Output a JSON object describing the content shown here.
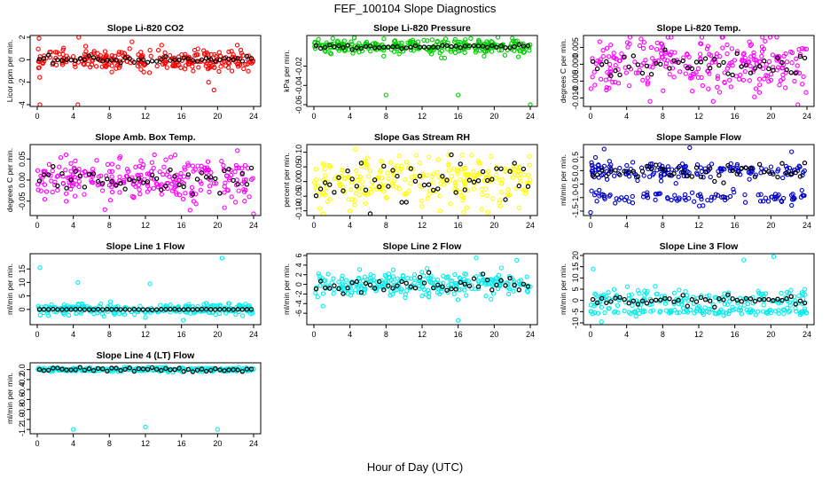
{
  "title": "FEF_100104  Slope Diagnostics",
  "xlabel": "Hour of Day (UTC)",
  "chart_data": [
    {
      "type": "scatter",
      "title": "Slope Li-820 CO2",
      "ylabel": "Licor ppm per min.",
      "xlim": [
        0,
        24
      ],
      "ylim": [
        -4,
        2
      ],
      "yticks": [
        -4,
        -2,
        0,
        2
      ],
      "ytick_labels": [
        "-4",
        "-2",
        "0",
        "2"
      ],
      "color": "#ff0000",
      "center": 0,
      "spread": 0.45,
      "ref_center": 0,
      "ref_spread": 0.15,
      "outliers": [
        [
          0.2,
          1.9
        ],
        [
          4.6,
          2.0
        ],
        [
          0.3,
          -4.0
        ],
        [
          4.5,
          -4.1
        ],
        [
          17.2,
          -0.6
        ],
        [
          17.3,
          -1.0
        ],
        [
          19.0,
          -2.0
        ],
        [
          19.6,
          -2.7
        ],
        [
          10.5,
          1.6
        ],
        [
          13.8,
          1.3
        ]
      ]
    },
    {
      "type": "scatter",
      "title": "Slope Li-820 Pressure",
      "ylabel": "kPa per min.",
      "xlim": [
        0,
        24
      ],
      "ylim": [
        -0.06,
        0.01
      ],
      "yticks": [
        -0.06,
        -0.04,
        -0.02
      ],
      "ytick_labels": [
        "-0.06",
        "-0.04",
        "-0.02"
      ],
      "color": "#00cc00",
      "center": 0.0,
      "spread": 0.004,
      "ref_center": 0.0,
      "ref_spread": 0.001,
      "outliers": [
        [
          8.0,
          -0.05
        ],
        [
          16.0,
          -0.05
        ],
        [
          24.0,
          -0.06
        ],
        [
          0.5,
          0.008
        ],
        [
          22.0,
          0.009
        ]
      ]
    },
    {
      "type": "scatter",
      "title": "Slope Li-820 Temp.",
      "ylabel": "degrees C per min.",
      "xlim": [
        0,
        24
      ],
      "ylim": [
        -0.012,
        0.008
      ],
      "yticks": [
        -0.01,
        -0.005,
        0,
        0.005
      ],
      "ytick_labels": [
        "-0.010",
        "-0.005",
        "0.000",
        "0.005"
      ],
      "color": "#ff00ff",
      "center": 0.0,
      "spread": 0.004,
      "ref_center": 0.0,
      "ref_spread": 0.002,
      "outliers": [
        [
          5.6,
          0.0075
        ],
        [
          23.0,
          -0.012
        ],
        [
          6.6,
          -0.011
        ],
        [
          13.6,
          -0.011
        ]
      ]
    },
    {
      "type": "scatter",
      "title": "Slope Amb. Box Temp.",
      "ylabel": "degrees C per min.",
      "xlim": [
        0,
        24
      ],
      "ylim": [
        -0.08,
        0.08
      ],
      "yticks": [
        -0.05,
        0,
        0.05
      ],
      "ytick_labels": [
        "-0.05",
        "0.00",
        "0.05"
      ],
      "color": "#ff00ff",
      "center": 0.0,
      "spread": 0.025,
      "ref_center": 0.0,
      "ref_spread": 0.015,
      "outliers": [
        [
          24.0,
          -0.08
        ],
        [
          7.5,
          -0.07
        ],
        [
          3.2,
          0.06
        ],
        [
          13.0,
          0.06
        ],
        [
          22.2,
          0.07
        ]
      ]
    },
    {
      "type": "scatter",
      "title": "Slope Gas Stream RH",
      "ylabel": "percent per min.",
      "xlim": [
        0,
        24
      ],
      "ylim": [
        -0.11,
        0.12
      ],
      "yticks": [
        -0.1,
        -0.05,
        0,
        0.05,
        0.1
      ],
      "ytick_labels": [
        "-0.10",
        "-0.05",
        "0.00",
        "0.05",
        "0.10"
      ],
      "color": "#ffff00",
      "center": 0.0,
      "spread": 0.04,
      "ref_center": 0.0,
      "ref_spread": 0.035,
      "outliers": [
        [
          4.6,
          0.11
        ],
        [
          17.5,
          0.09
        ],
        [
          4.0,
          -0.1
        ],
        [
          14.0,
          -0.1
        ]
      ]
    },
    {
      "type": "scatter",
      "title": "Slope Sample Flow",
      "ylabel": "ml/min per min.",
      "xlim": [
        0,
        24
      ],
      "ylim": [
        -1.6,
        0.9
      ],
      "yticks": [
        -1.5,
        -1,
        -0.5,
        0,
        0.5
      ],
      "ytick_labels": [
        "-1.5",
        "-1.0",
        "-0.5",
        "0.0",
        "0.5"
      ],
      "color": "#0000cc",
      "center": 0.0,
      "spread": 0.15,
      "second_band": -1.0,
      "ref_center": 0.0,
      "ref_spread": 0.15,
      "outliers": [
        [
          0.0,
          -1.55
        ],
        [
          1.5,
          0.8
        ],
        [
          11.0,
          0.85
        ],
        [
          22.3,
          0.7
        ]
      ]
    },
    {
      "type": "scatter",
      "title": "Slope Line 1 Flow",
      "ylabel": "ml/min per min.",
      "xlim": [
        0,
        24
      ],
      "ylim": [
        -5,
        20
      ],
      "yticks": [
        0,
        5,
        10,
        15
      ],
      "ytick_labels": [
        "0",
        "5",
        "10",
        "15"
      ],
      "color": "#00eeee",
      "center": 0.0,
      "spread": 1.0,
      "ref_center": 0.0,
      "ref_spread": 0.05,
      "outliers": [
        [
          0.3,
          15.5
        ],
        [
          4.5,
          10.0
        ],
        [
          12.5,
          9.5
        ],
        [
          20.5,
          19.0
        ],
        [
          16.2,
          -4.0
        ],
        [
          12.0,
          -3.0
        ]
      ]
    },
    {
      "type": "scatter",
      "title": "Slope Line 2 Flow",
      "ylabel": "ml/min per min.",
      "xlim": [
        0,
        24
      ],
      "ylim": [
        -8,
        6
      ],
      "yticks": [
        -6,
        -4,
        -2,
        0,
        2,
        4,
        6
      ],
      "ytick_labels": [
        "-6",
        "-4",
        "-2",
        "0",
        "2",
        "4",
        "6"
      ],
      "color": "#00eeee",
      "center": 0.0,
      "spread": 1.2,
      "ref_center": 0.0,
      "ref_spread": 0.9,
      "outliers": [
        [
          1.0,
          -4.5
        ],
        [
          16.0,
          -7.5
        ],
        [
          18.0,
          5.5
        ],
        [
          22.5,
          5.0
        ]
      ]
    },
    {
      "type": "scatter",
      "title": "Slope Line 3 Flow",
      "ylabel": "ml/min per min.",
      "xlim": [
        0,
        24
      ],
      "ylim": [
        -10,
        20
      ],
      "yticks": [
        -10,
        -5,
        0,
        5,
        10,
        15,
        20
      ],
      "ytick_labels": [
        "-10",
        "-5",
        "0",
        "5",
        "10",
        "15",
        "20"
      ],
      "color": "#00eeee",
      "center": 0.0,
      "spread": 2.5,
      "second_band": -5.0,
      "ref_center": 0.0,
      "ref_spread": 1.0,
      "outliers": [
        [
          0.3,
          14.0
        ],
        [
          17.0,
          18.0
        ],
        [
          20.3,
          19.5
        ],
        [
          1.2,
          -9.5
        ]
      ]
    },
    {
      "type": "scatter",
      "title": "Slope Line 4 (LT) Flow",
      "ylabel": "ml/min per min.",
      "xlim": [
        0,
        24
      ],
      "ylim": [
        -1.25,
        0.1
      ],
      "yticks": [
        -1.2,
        -1,
        -0.8,
        -0.6,
        -0.4,
        -0.2,
        0
      ],
      "ytick_labels": [
        "-1.2",
        "-1.0",
        "-0.8",
        "-0.6",
        "-0.4",
        "-0.2",
        "0.0"
      ],
      "color": "#00eeee",
      "center": 0.0,
      "spread": 0.02,
      "ref_center": 0.0,
      "ref_spread": 0.02,
      "outliers": [
        [
          4.0,
          -1.2
        ],
        [
          12.0,
          -1.15
        ],
        [
          20.0,
          -1.2
        ]
      ]
    }
  ],
  "xticks": [
    0,
    4,
    8,
    12,
    16,
    20,
    24
  ]
}
